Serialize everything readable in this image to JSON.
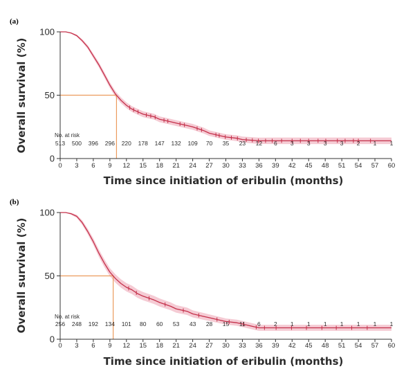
{
  "chart_data": [
    {
      "type": "line",
      "panel": "(a)",
      "xlabel": "Time since initiation of eribulin (months)",
      "ylabel": "Overall survival (%)",
      "xlim": [
        0,
        60
      ],
      "ylim": [
        0,
        100
      ],
      "x_ticks": [
        0,
        3,
        6,
        9,
        12,
        15,
        18,
        21,
        24,
        27,
        30,
        33,
        36,
        39,
        42,
        45,
        48,
        51,
        54,
        57,
        60
      ],
      "y_ticks": [
        0,
        50,
        100
      ],
      "median_months": 10.2,
      "median_survival": 50,
      "curve": {
        "x": [
          0,
          1,
          2,
          3,
          4,
          5,
          6,
          7,
          8,
          9,
          10,
          11,
          12,
          13,
          14,
          15,
          17,
          18,
          20,
          21,
          23,
          24,
          26,
          27,
          29,
          30,
          32,
          33,
          36,
          39,
          42,
          45,
          48,
          51,
          54,
          57,
          60
        ],
        "y": [
          100,
          100,
          99,
          97,
          93,
          88,
          81,
          74,
          66,
          58,
          51,
          46,
          42,
          39,
          37,
          35,
          33,
          31,
          29,
          28,
          26,
          25,
          22,
          20,
          18,
          17,
          16,
          15,
          14,
          14,
          14,
          14,
          14,
          14,
          14,
          14,
          14
        ],
        "ci_half_width": [
          0,
          0,
          0.5,
          0.8,
          1.2,
          1.5,
          1.8,
          2,
          2.2,
          2.3,
          2.3,
          2.3,
          2.3,
          2.3,
          2.3,
          2.3,
          2.3,
          2.3,
          2.3,
          2.3,
          2.3,
          2.3,
          2.3,
          2.2,
          2.2,
          2.2,
          2.3,
          2.4,
          2.5,
          2.6,
          2.6,
          2.6,
          2.6,
          2.6,
          2.6,
          2.6,
          2.6
        ]
      },
      "censor_x": [
        12.6,
        13.3,
        14.1,
        15.6,
        16.4,
        17.2,
        18.8,
        19.5,
        21.7,
        22.5,
        24.8,
        25.6,
        28.2,
        28.8,
        29.9,
        31.0,
        32.1,
        33.7,
        34.8,
        35.9,
        37.2,
        38.4,
        40.1,
        42.0,
        43.5,
        45.0,
        46.7,
        48.1,
        50.2,
        51.6,
        53.1,
        54.0,
        56.2
      ],
      "risk_table": {
        "title": "No. at risk",
        "counts": [
          "513",
          "500",
          "396",
          "296",
          "220",
          "178",
          "147",
          "132",
          "109",
          "70",
          "35",
          "23",
          "12",
          "6",
          "3",
          "3",
          "3",
          "3",
          "2",
          "1",
          "1"
        ]
      },
      "colors": {
        "line": "#c4304a",
        "band": "#f2b9c6",
        "median": "#ec9a5c",
        "axis": "#333333"
      }
    },
    {
      "type": "line",
      "panel": "(b)",
      "xlabel": "Time since initiation of eribulin (months)",
      "ylabel": "Overall survival (%)",
      "xlim": [
        0,
        60
      ],
      "ylim": [
        0,
        100
      ],
      "x_ticks": [
        0,
        3,
        6,
        9,
        12,
        15,
        18,
        21,
        24,
        27,
        30,
        33,
        36,
        39,
        42,
        45,
        48,
        51,
        54,
        57,
        60
      ],
      "y_ticks": [
        0,
        50,
        100
      ],
      "median_months": 9.6,
      "median_survival": 50,
      "curve": {
        "x": [
          0,
          1,
          2,
          3,
          4,
          5,
          6,
          7,
          8,
          9,
          10,
          11,
          12,
          13,
          14,
          15,
          17,
          18,
          20,
          21,
          23,
          24,
          26,
          27,
          29,
          30,
          32,
          33,
          35,
          36,
          39,
          42,
          45,
          48,
          51,
          54,
          57,
          60
        ],
        "y": [
          100,
          100,
          99,
          97,
          92,
          85,
          77,
          68,
          60,
          53,
          48,
          44,
          41,
          39,
          36,
          34,
          31,
          29,
          26,
          24,
          22,
          20,
          18,
          17,
          15,
          14,
          13,
          12,
          10,
          9,
          9,
          9,
          9,
          9,
          9,
          9,
          9,
          9
        ],
        "ci_half_width": [
          0,
          0,
          0.8,
          1.2,
          1.8,
          2.2,
          2.6,
          2.9,
          3.1,
          3.2,
          3.3,
          3.3,
          3.3,
          3.3,
          3.3,
          3.3,
          3.2,
          3.2,
          3.1,
          3.0,
          2.9,
          2.8,
          2.7,
          2.6,
          2.5,
          2.4,
          2.4,
          2.4,
          2.4,
          2.4,
          2.4,
          2.4,
          2.4,
          2.4,
          2.4,
          2.4,
          2.4,
          2.4
        ]
      },
      "censor_x": [
        12.4,
        13.8,
        16.1,
        19.0,
        22.3,
        25.1,
        28.4,
        30.6,
        33.2,
        35.5,
        37.0,
        39.1,
        41.9,
        44.6,
        47.4,
        50.0,
        52.8,
        55.6
      ],
      "risk_table": {
        "title": "No. at risk",
        "counts": [
          "256",
          "248",
          "192",
          "134",
          "101",
          "80",
          "60",
          "53",
          "43",
          "28",
          "15",
          "11",
          "6",
          "2",
          "1",
          "1",
          "1",
          "1",
          "1",
          "1",
          "1"
        ]
      },
      "colors": {
        "line": "#c4304a",
        "band": "#f2b9c6",
        "median": "#ec9a5c",
        "axis": "#333333"
      }
    }
  ]
}
